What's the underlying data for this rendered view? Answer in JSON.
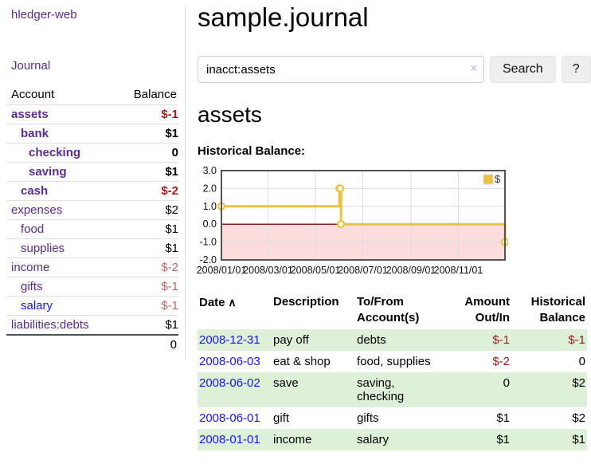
{
  "sidebar": {
    "brand": "hledger-web",
    "nav": {
      "journal": "Journal"
    },
    "table": {
      "account_header": "Account",
      "balance_header": "Balance"
    },
    "rows": [
      {
        "name": "assets",
        "balance": "$-1",
        "depth": 1,
        "bold": true
      },
      {
        "name": "bank",
        "balance": "$1",
        "depth": 2,
        "bold": true
      },
      {
        "name": "checking",
        "balance": "0",
        "depth": 3,
        "bold": true
      },
      {
        "name": "saving",
        "balance": "$1",
        "depth": 3,
        "bold": true
      },
      {
        "name": "cash",
        "balance": "$-2",
        "depth": 2,
        "bold": true
      },
      {
        "name": "expenses",
        "balance": "$2",
        "depth": 1,
        "bold": false
      },
      {
        "name": "food",
        "balance": "$1",
        "depth": 2,
        "bold": false
      },
      {
        "name": "supplies",
        "balance": "$1",
        "depth": 2,
        "bold": false
      },
      {
        "name": "income",
        "balance": "$-2",
        "depth": 1,
        "bold": false
      },
      {
        "name": "gifts",
        "balance": "$-1",
        "depth": 2,
        "bold": false
      },
      {
        "name": "salary",
        "balance": "$-1",
        "depth": 2,
        "bold": false,
        "link_color": "blue"
      },
      {
        "name": "liabilities:debts",
        "balance": "$1",
        "depth": 1,
        "bold": false
      }
    ],
    "total": "0"
  },
  "main": {
    "title": "sample.journal",
    "search": {
      "value": "inacct:assets",
      "clear": "×",
      "button": "Search",
      "help": "?"
    },
    "account_title": "assets"
  },
  "chart_data": {
    "type": "line",
    "title": "Historical Balance:",
    "step": true,
    "series": [
      {
        "name": "$",
        "color": "#edc240",
        "points": [
          [
            "2008-01-01",
            1
          ],
          [
            "2008-06-01",
            2
          ],
          [
            "2008-06-02",
            2
          ],
          [
            "2008-06-03",
            0
          ],
          [
            "2008-12-31",
            -1
          ]
        ]
      }
    ],
    "xlim": [
      "2008-01-01",
      "2008-12-31"
    ],
    "ylim": [
      -2,
      3
    ],
    "xticks": [
      {
        "date": "2008-01-01",
        "label": "2008/01/01"
      },
      {
        "date": "2008-03-01",
        "label": "2008/03/01"
      },
      {
        "date": "2008-05-01",
        "label": "2008/05/01"
      },
      {
        "date": "2008-07-01",
        "label": "2008/07/01"
      },
      {
        "date": "2008-09-01",
        "label": "2008/09/01"
      },
      {
        "date": "2008-11-01",
        "label": "2008/11/01"
      }
    ],
    "yticks": [
      {
        "v": 3,
        "label": "3.0"
      },
      {
        "v": 2,
        "label": "2.0"
      },
      {
        "v": 1,
        "label": "1.0"
      },
      {
        "v": 0,
        "label": "0.0"
      },
      {
        "v": -1,
        "label": "-1.0"
      },
      {
        "v": -2,
        "label": "-2.0"
      }
    ],
    "legend": {
      "position": "top-right",
      "items": [
        {
          "label": "$",
          "color": "#edc240"
        }
      ]
    },
    "grid": true,
    "negative_region_color": "#fcdcdc",
    "zero_line_color": "#8b1a1a",
    "border_color": "#545454",
    "gridline_color": "#dddddd"
  },
  "register": {
    "columns": [
      {
        "label": "Date",
        "sort": "∧"
      },
      {
        "label": "Description"
      },
      {
        "label": "To/From Account(s)"
      },
      {
        "label": "Amount Out/In",
        "align": "right"
      },
      {
        "label": "Historical Balance",
        "align": "right"
      }
    ],
    "rows": [
      {
        "date": "2008-12-31",
        "description": "pay off",
        "accounts": "debts",
        "amount": "$-1",
        "balance": "$-1"
      },
      {
        "date": "2008-06-03",
        "description": "eat & shop",
        "accounts": "food, supplies",
        "amount": "$-2",
        "balance": "0"
      },
      {
        "date": "2008-06-02",
        "description": "save",
        "accounts": "saving, checking",
        "amount": "0",
        "balance": "$2"
      },
      {
        "date": "2008-06-01",
        "description": "gift",
        "accounts": "gifts",
        "amount": "$1",
        "balance": "$2"
      },
      {
        "date": "2008-01-01",
        "description": "income",
        "accounts": "salary",
        "amount": "$1",
        "balance": "$1"
      }
    ]
  }
}
